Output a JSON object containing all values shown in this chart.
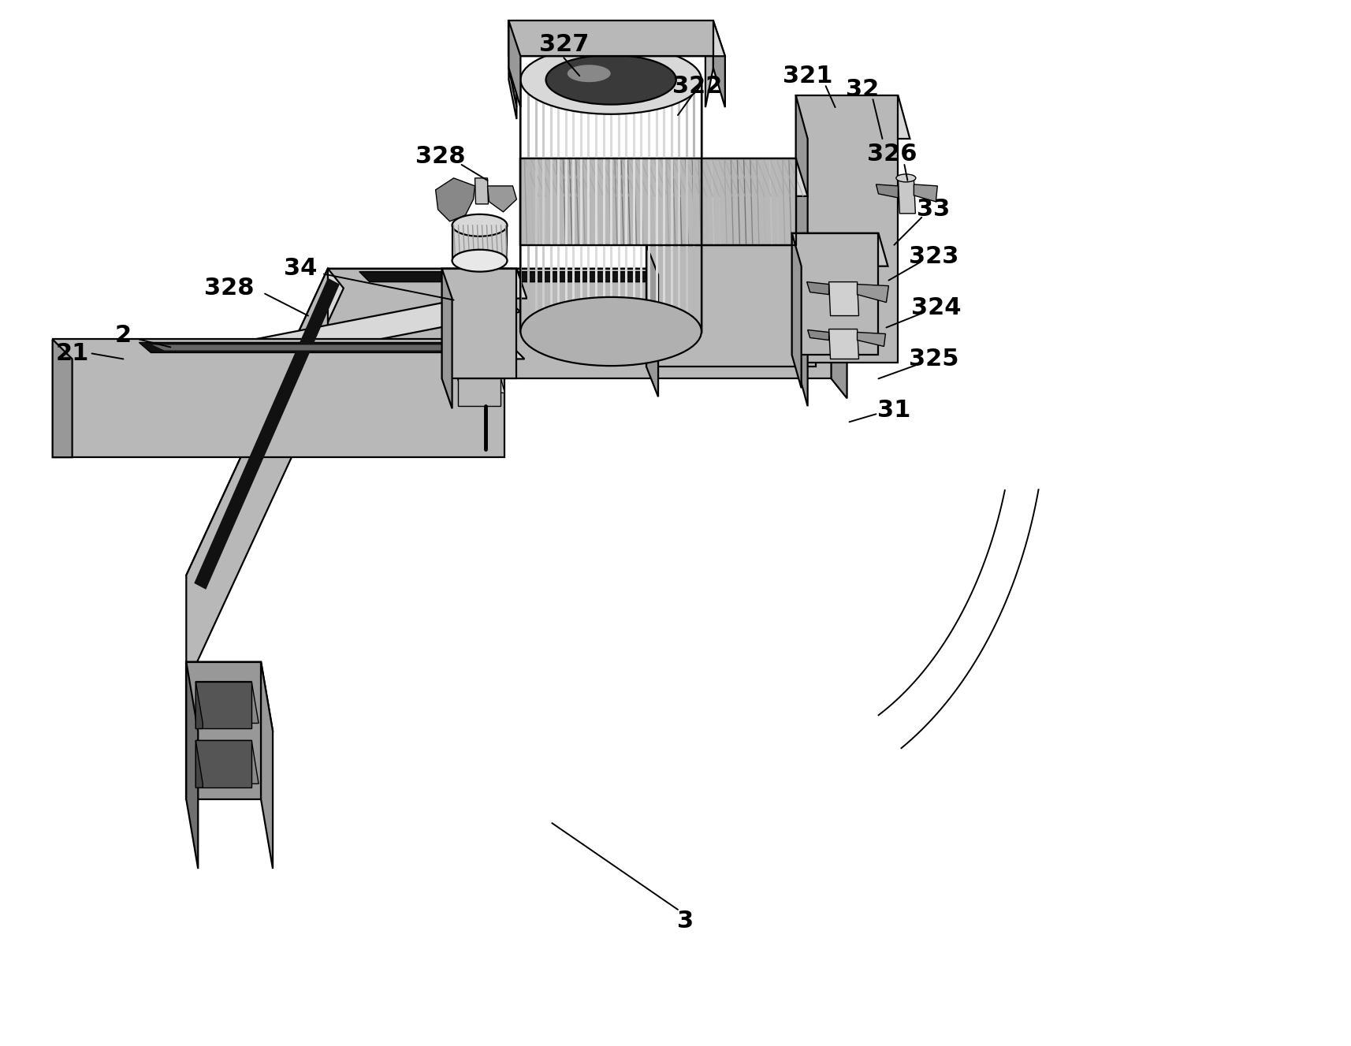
{
  "background_color": "#ffffff",
  "line_color": "#000000",
  "figsize": [
    17.15,
    13.27
  ],
  "dpi": 100,
  "lw_main": 1.6,
  "lw_thin": 1.0,
  "gray_top": "#d8d8d8",
  "gray_front": "#b8b8b8",
  "gray_side": "#989898",
  "gray_dark": "#707070",
  "slot_color": "#111111",
  "white": "#ffffff"
}
